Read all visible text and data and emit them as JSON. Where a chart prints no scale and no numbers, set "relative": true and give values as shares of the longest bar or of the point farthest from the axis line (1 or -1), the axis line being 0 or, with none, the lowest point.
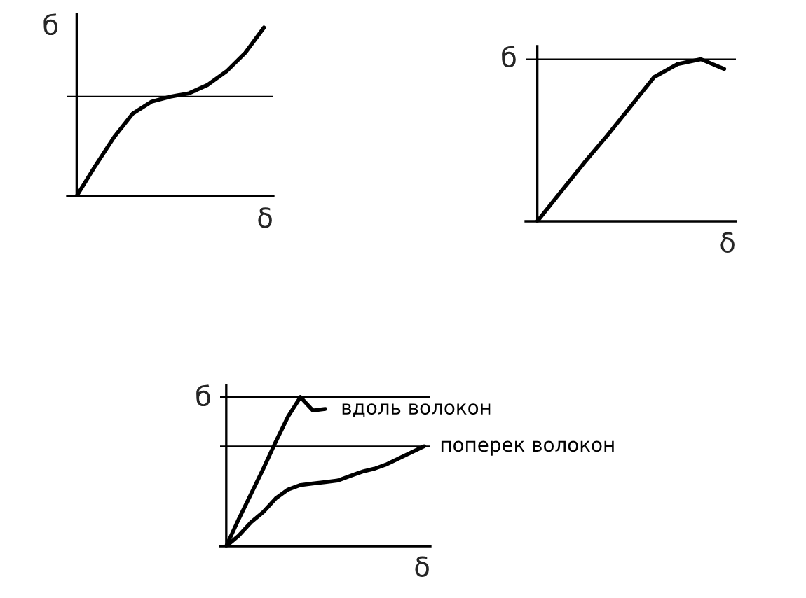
{
  "chart_data": [
    {
      "type": "line",
      "relative": true,
      "ylabel": "б",
      "xlabel": "δ",
      "categories": [
        null,
        null,
        null,
        null,
        null,
        null,
        null,
        null,
        null,
        null,
        null
      ],
      "series": [
        {
          "color": "#000000",
          "values": [
            0,
            0.18,
            0.35,
            0.49,
            0.56,
            0.59,
            0.61,
            0.66,
            0.74,
            0.85,
            1
          ]
        }
      ],
      "ref_lines": [
        {
          "axis": "y",
          "value": 0.59,
          "color": "#000000"
        }
      ]
    },
    {
      "type": "line",
      "relative": true,
      "ylabel": "б",
      "xlabel": "δ",
      "categories": [
        null,
        null,
        null,
        null,
        null,
        null,
        null,
        null,
        null
      ],
      "series": [
        {
          "color": "#000000",
          "values": [
            0,
            0.18,
            0.36,
            0.53,
            0.71,
            0.89,
            0.97,
            1,
            0.94
          ]
        }
      ],
      "ref_lines": [
        {
          "axis": "y",
          "value": 1,
          "color": "#000000"
        }
      ]
    },
    {
      "type": "line",
      "relative": true,
      "ylabel": "б",
      "xlabel": "δ",
      "categories": [
        null,
        null,
        null,
        null,
        null,
        null,
        null,
        null,
        null,
        null,
        null,
        null,
        null,
        null,
        null,
        null,
        null
      ],
      "series": [
        {
          "name": "вдоль волокон",
          "color": "#000000",
          "values": [
            0,
            0.18,
            0.35,
            0.52,
            0.7,
            0.87,
            1,
            0.91,
            0.92,
            null,
            null,
            null,
            null,
            null,
            null,
            null,
            null
          ]
        },
        {
          "name": "поперек волокон",
          "color": "#000000",
          "values": [
            0,
            0.07,
            0.16,
            0.23,
            0.32,
            0.38,
            0.41,
            0.42,
            0.43,
            0.44,
            0.47,
            0.5,
            0.52,
            0.55,
            0.59,
            0.63,
            0.67
          ]
        }
      ],
      "ref_lines": [
        {
          "axis": "y",
          "value": 1,
          "color": "#000000"
        },
        {
          "axis": "y",
          "value": 0.67,
          "color": "#000000"
        }
      ]
    }
  ]
}
